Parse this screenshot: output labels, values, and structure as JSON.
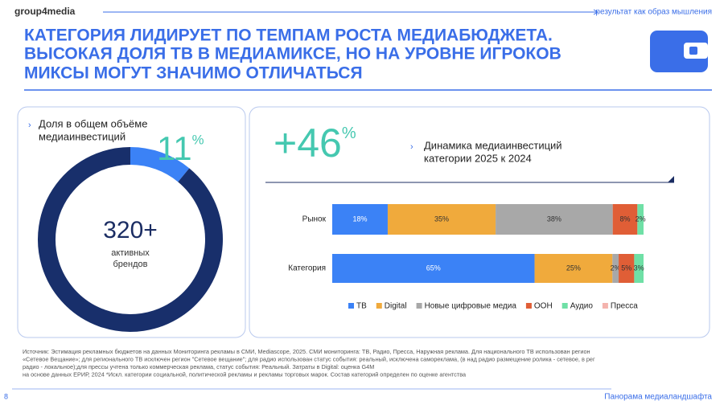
{
  "header": {
    "logo": "group4media",
    "tagline": "результат как образ мышления",
    "title": [
      "КАТЕГОРИЯ ЛИДИРУЕТ ПО ТЕМПАМ РОСТА МЕДИАБЮДЖЕТА.",
      "ВЫСОКАЯ ДОЛЯ ТВ В МЕДИАМИКСЕ, НО НА УРОВНЕ ИГРОКОВ",
      "МИКСЫ МОГУТ ЗНАЧИМО ОТЛИЧАТЬСЯ"
    ]
  },
  "chart_data": [
    {
      "type": "donut",
      "title": [
        "Доля в общем объёме",
        "медиаинвестиций"
      ],
      "values": [
        11,
        89
      ],
      "value_labels": [
        "11%",
        null
      ],
      "colors": [
        "#3b82f6",
        "#182f6b"
      ],
      "center_label": "320+",
      "center_sublabel": [
        "активных",
        "брендов"
      ]
    },
    {
      "type": "stacked_barh",
      "growth": {
        "value": 46,
        "label": "+46%"
      },
      "title": [
        "Динамика медиаинвестиций",
        "категории 2025 к 2024"
      ],
      "categories": [
        "Рынок",
        "Категория"
      ],
      "series": [
        {
          "name": "ТВ",
          "color": "#3b82f6",
          "values": [
            18,
            65
          ],
          "value_labels": [
            "18%",
            "65%"
          ]
        },
        {
          "name": "Digital",
          "color": "#f0aa3c",
          "values": [
            35,
            25
          ],
          "value_labels": [
            "35%",
            "25%"
          ]
        },
        {
          "name": "Новые цифровые медиа",
          "color": "#a8a8a8",
          "values": [
            38,
            2
          ],
          "value_labels": [
            "38%",
            "2%"
          ]
        },
        {
          "name": "OOH",
          "color": "#e05e36",
          "values": [
            8,
            5
          ],
          "value_labels": [
            "8%",
            "5%"
          ]
        },
        {
          "name": "Аудио",
          "color": "#6fe0a6",
          "values": [
            2,
            3
          ],
          "value_labels": [
            "2%",
            "3%"
          ]
        },
        {
          "name": "Пресса",
          "color": "#f4b3ad",
          "values": [
            0,
            0
          ],
          "value_labels": [
            null,
            null
          ]
        }
      ]
    }
  ],
  "footer": {
    "source": [
      "Источник: Эстимация рекламных бюджетов на данных Мониторинга рекламы в СМИ, Mediascope, 2025. СМИ мониторинга: ТВ, Радио, Пресса, Наружная реклама. Для национального ТВ использован регион",
      "«Сетевое Вещание»; для регионального ТВ исключен регион \"Сетевое вещание\"; для радио использован статус события: реальный, исключена самореклама, (в над радио размещение ролика - сетевое, в рег",
      "радио - локальное);для прессы учтена только коммерческая реклама, статус события: Реальный. Затраты в Digital: оценка G4M",
      "на основе данных ЕРИР, 2024 *Искл. категории социальной, политической рекламы и рекламы торговых марок. Состав категорий определен по оценке агентства"
    ],
    "page": "8",
    "section": "Панорама медиаландшафта"
  }
}
